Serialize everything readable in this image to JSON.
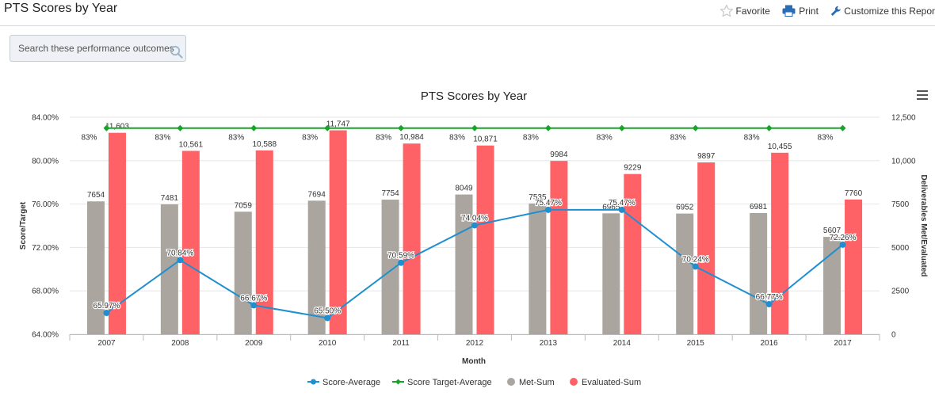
{
  "page": {
    "title": "PTS Scores by Year",
    "actions": {
      "favorite": "Favorite",
      "print": "Print",
      "customize": "Customize this Repor"
    }
  },
  "search": {
    "placeholder": "Search these performance outcomes"
  },
  "colors": {
    "score_average": "#1f8fd0",
    "score_target": "#18a32a",
    "met_sum": "#aaa69f",
    "evaluated_sum": "#ff6266",
    "favorite_icon": "#c8c8c8",
    "print_icon": "#2a6db5",
    "customize_icon": "#2a6db5"
  },
  "icons": {
    "favorite": "star-icon",
    "print": "printer-icon",
    "customize": "wrench-icon",
    "search": "search-icon",
    "chart_menu": "hamburger-menu-icon"
  },
  "chart_data": {
    "type": "combo",
    "title": "PTS Scores by Year",
    "xlabel": "Month",
    "ylabel_left": "Score/Target",
    "ylabel_right": "Deliverables Met/Evaluated",
    "categories": [
      "2007",
      "2008",
      "2009",
      "2010",
      "2011",
      "2012",
      "2013",
      "2014",
      "2015",
      "2016",
      "2017"
    ],
    "y_left": {
      "min": 64,
      "max": 84,
      "ticks": [
        64,
        68,
        72,
        76,
        80,
        84
      ],
      "tick_labels": [
        "64.00%",
        "68.00%",
        "72.00%",
        "76.00%",
        "80.00%",
        "84.00%"
      ]
    },
    "y_right": {
      "min": 0,
      "max": 12500,
      "ticks": [
        0,
        2500,
        5000,
        7500,
        10000,
        12500
      ],
      "tick_labels": [
        "0",
        "2500",
        "5000",
        "7500",
        "10,000",
        "12,500"
      ]
    },
    "grid": true,
    "legend_position": "bottom",
    "series": [
      {
        "name": "Score-Average",
        "type": "line",
        "axis": "left",
        "values": [
          65.97,
          70.84,
          66.67,
          65.5,
          70.59,
          74.04,
          75.47,
          75.47,
          70.24,
          66.77,
          72.26
        ],
        "labels": [
          "65.97%",
          "70.84%",
          "66.67%",
          "65.50%",
          "70.59%",
          "74.04%",
          "75.47%",
          "75.47%",
          "70.24%",
          "66.77%",
          "72.26%"
        ]
      },
      {
        "name": "Score Target-Average",
        "type": "line",
        "axis": "left",
        "values": [
          83,
          83,
          83,
          83,
          83,
          83,
          83,
          83,
          83,
          83,
          83
        ],
        "labels": [
          "83%",
          "83%",
          "83%",
          "83%",
          "83%",
          "83%",
          "83%",
          "83%",
          "83%",
          "83%",
          "83%"
        ]
      },
      {
        "name": "Met-Sum",
        "type": "bar",
        "axis": "right",
        "values": [
          7654,
          7481,
          7059,
          7694,
          7754,
          8049,
          7535,
          6965,
          6952,
          6981,
          5607
        ],
        "labels": [
          "7654",
          "7481",
          "7059",
          "7694",
          "7754",
          "8049",
          "7535",
          "6965",
          "6952",
          "6981",
          "5607"
        ]
      },
      {
        "name": "Evaluated-Sum",
        "type": "bar",
        "axis": "right",
        "values": [
          11603,
          10561,
          10588,
          11747,
          10984,
          10871,
          9984,
          9229,
          9897,
          10455,
          7760
        ],
        "labels": [
          "11,603",
          "10,561",
          "10,588",
          "11,747",
          "10,984",
          "10,871",
          "9984",
          "9229",
          "9897",
          "10,455",
          "7760"
        ]
      }
    ]
  }
}
